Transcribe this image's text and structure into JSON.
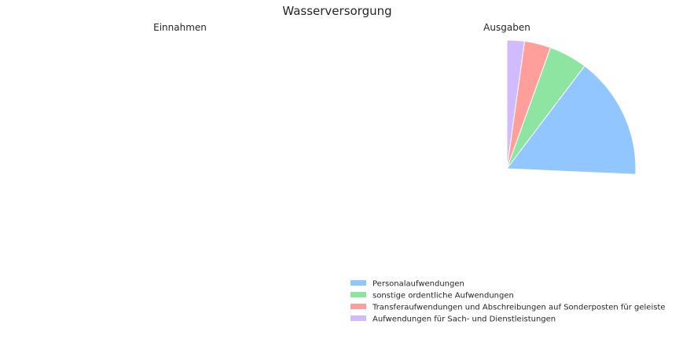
{
  "chart_data": {
    "type": "pie",
    "title": "Wasserversorgung",
    "charts": [
      {
        "subtitle": "Einnahmen",
        "slices": []
      },
      {
        "subtitle": "Ausgaben",
        "start_angle_deg": 90,
        "direction": "clockwise",
        "slices": [
          {
            "label": "Aufwendungen für Sach- und Dienstleistungen",
            "value": 2.2,
            "color": "#d0bbff"
          },
          {
            "label": "Transferaufwendungen und Abschreibungen auf Sonderposten für geleiste",
            "value": 3.3,
            "color": "#ff9f9b"
          },
          {
            "label": "sonstige ordentliche Aufwendungen",
            "value": 4.8,
            "color": "#8de5a1"
          },
          {
            "label": "Personalaufwendungen",
            "value": 15.4,
            "color": "#92c6ff"
          }
        ]
      }
    ],
    "legend": {
      "placement": "lower-right",
      "entries": [
        {
          "label": "Personalaufwendungen",
          "color": "#92c6ff"
        },
        {
          "label": "sonstige ordentliche Aufwendungen",
          "color": "#8de5a1"
        },
        {
          "label": "Transferaufwendungen und Abschreibungen auf Sonderposten für geleiste",
          "color": "#ff9f9b"
        },
        {
          "label": "Aufwendungen für Sach- und Dienstleistungen",
          "color": "#d0bbff"
        }
      ]
    }
  }
}
